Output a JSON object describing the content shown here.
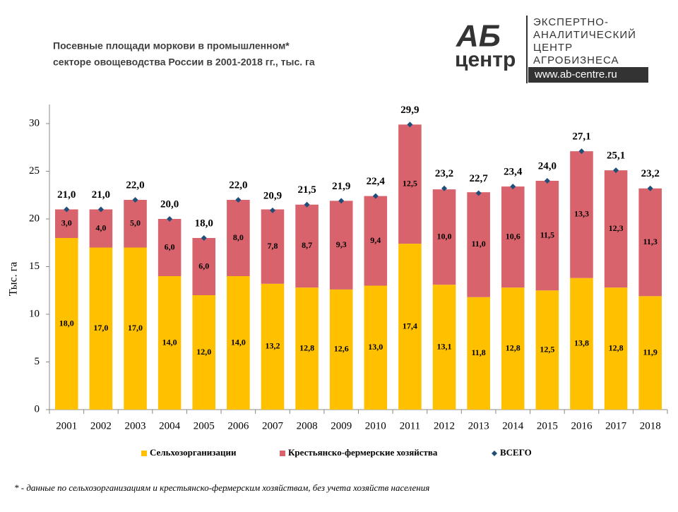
{
  "logo": {
    "big": "АБ",
    "small": "центр",
    "lines": [
      "ЭКСПЕРТНО-",
      "АНАЛИТИЧЕСКИЙ",
      "ЦЕНТР",
      "АГРОБИЗНЕСА"
    ],
    "url": "www.ab-centre.ru"
  },
  "chart_data": {
    "type": "bar",
    "stacked": true,
    "title": [
      "Посевные площади моркови в промышленном*",
      "секторе овощеводства России в 2001-2018 гг., тыс. га"
    ],
    "y_label": "Тыс. га",
    "footnote": "* - данные по сельхозорганизациям и крестьянско-фермерским  хозяйствам, без учета хозяйств населения",
    "categories": [
      "2001",
      "2002",
      "2003",
      "2004",
      "2005",
      "2006",
      "2007",
      "2008",
      "2009",
      "2010",
      "2011",
      "2012",
      "2013",
      "2014",
      "2015",
      "2016",
      "2017",
      "2018"
    ],
    "series": [
      {
        "name": "Сельхозорганизации",
        "color": "#ffc000",
        "values": [
          18,
          17,
          17,
          14,
          12,
          14,
          13.2,
          12.8,
          12.6,
          13.0,
          17.4,
          13.1,
          11.8,
          12.8,
          12.5,
          13.8,
          12.8,
          11.9
        ],
        "value_labels": [
          "18,0",
          "17,0",
          "17,0",
          "14,0",
          "12,0",
          "14,0",
          "13,2",
          "12,8",
          "12,6",
          "13,0",
          "17,4",
          "13,1",
          "11,8",
          "12,8",
          "12,5",
          "13,8",
          "12,8",
          "11,9"
        ]
      },
      {
        "name": "Крестьянско-фермерские хозяйства",
        "color": "#d9636c",
        "values": [
          3,
          4,
          5,
          6,
          6,
          8,
          7.8,
          8.7,
          9.3,
          9.4,
          12.5,
          10.0,
          11.0,
          10.6,
          11.5,
          13.3,
          12.3,
          11.3
        ],
        "value_labels": [
          "3,0",
          "4,0",
          "5,0",
          "6,0",
          "6,0",
          "8,0",
          "7,8",
          "8,7",
          "9,3",
          "9,4",
          "12,5",
          "10,0",
          "11,0",
          "10,6",
          "11,5",
          "13,3",
          "12,3",
          "11,3"
        ]
      },
      {
        "name": "ВСЕГО",
        "color": "#1f4e79",
        "type": "marker",
        "marker": "diamond",
        "values": [
          21,
          21,
          22,
          20,
          18,
          22,
          20.9,
          21.5,
          21.9,
          22.4,
          29.9,
          23.2,
          22.7,
          23.4,
          24.0,
          27.1,
          25.1,
          23.2
        ],
        "value_labels": [
          "21,0",
          "21,0",
          "22,0",
          "20,0",
          "18,0",
          "22,0",
          "20,9",
          "21,5",
          "21,9",
          "22,4",
          "29,9",
          "23,2",
          "22,7",
          "23,4",
          "24,0",
          "27,1",
          "25,1",
          "23,2"
        ]
      }
    ],
    "ylim": [
      0,
      32
    ],
    "yticks": [
      0,
      5,
      10,
      15,
      20,
      25,
      30
    ],
    "grid": false
  }
}
